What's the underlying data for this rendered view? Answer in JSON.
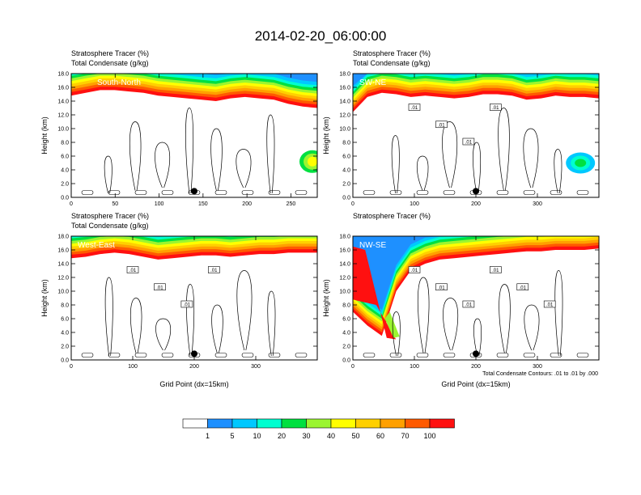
{
  "title": "2014-02-20_06:00:00",
  "chart_data": {
    "type": "heatmap",
    "panels": [
      {
        "name": "South-North",
        "field_label": "Stratosphere Tracer",
        "field_unit": "(%)",
        "contour_label": "Total Condensate",
        "contour_unit": "(g/kg)",
        "ylabel": "Height (km)",
        "xlabel": "",
        "xlim": [
          0,
          280
        ],
        "ylim": [
          0,
          18
        ],
        "xticks": [
          "0",
          "50",
          "100",
          "150",
          "200",
          "250"
        ],
        "yticks": [
          "0.0",
          "2.0",
          "4.0",
          "6.0",
          "8.0",
          "10.0",
          "12.0",
          "14.0",
          "16.0",
          "18.0"
        ],
        "point_x": 140,
        "contour_value_labels": [],
        "tropopause_km": [
          14.8,
          15.2,
          15.6,
          15.6,
          15.4,
          15.2,
          14.8,
          14.6,
          14.4,
          14.2,
          14.0,
          14.4,
          14.6,
          14.4,
          14.2,
          13.6,
          13.2,
          13.0
        ]
      },
      {
        "name": "SW-NE",
        "field_label": "Stratosphere Tracer",
        "field_unit": "(%)",
        "contour_label": "Total Condensate",
        "contour_unit": "(g/kg)",
        "ylabel": "Height (km)",
        "xlabel": "",
        "xlim": [
          0,
          400
        ],
        "ylim": [
          0,
          18
        ],
        "xticks": [
          "0",
          "100",
          "200",
          "300"
        ],
        "yticks": [
          "0.0",
          "2.0",
          "4.0",
          "6.0",
          "8.0",
          "10.0",
          "12.0",
          "14.0",
          "16.0",
          "18.0"
        ],
        "point_x": 200,
        "contour_value_labels": [
          ".01",
          ".01",
          ".01",
          ".01"
        ],
        "tropopause_km": [
          12.4,
          14.6,
          15.2,
          15.0,
          14.6,
          14.8,
          14.6,
          14.4,
          14.6,
          15.0,
          15.0,
          14.8,
          14.2,
          14.4,
          14.8,
          14.6,
          14.6,
          14.4
        ]
      },
      {
        "name": "West-East",
        "field_label": "Stratosphere Tracer",
        "field_unit": "(%)",
        "contour_label": "Total Condensate",
        "contour_unit": "(g/kg)",
        "ylabel": "Height (km)",
        "xlabel": "Grid Point (dx=15km)",
        "xlim": [
          0,
          400
        ],
        "ylim": [
          0,
          18
        ],
        "xticks": [
          "0",
          "100",
          "200",
          "300"
        ],
        "yticks": [
          "0.0",
          "2.0",
          "4.0",
          "6.0",
          "8.0",
          "10.0",
          "12.0",
          "14.0",
          "16.0",
          "18.0"
        ],
        "point_x": 200,
        "contour_value_labels": [
          ".01",
          ".01",
          ".01",
          ".01"
        ],
        "tropopause_km": [
          14.8,
          15.0,
          15.4,
          15.6,
          15.4,
          15.0,
          14.6,
          14.8,
          15.0,
          15.2,
          15.2,
          15.0,
          15.2,
          15.4,
          15.4,
          15.6,
          15.6,
          15.6
        ]
      },
      {
        "name": "NW-SE",
        "field_label": "Stratosphere Tracer",
        "field_unit": "(%)",
        "contour_label": "",
        "contour_unit": "",
        "ylabel": "Height (km)",
        "xlabel": "Grid Point (dx=15km)",
        "xlim": [
          0,
          400
        ],
        "ylim": [
          0,
          18
        ],
        "xticks": [
          "0",
          "100",
          "200",
          "300"
        ],
        "yticks": [
          "0.0",
          "2.0",
          "4.0",
          "6.0",
          "8.0",
          "10.0",
          "12.0",
          "14.0",
          "16.0",
          "18.0"
        ],
        "point_x": 200,
        "contour_value_labels": [
          ".01",
          ".01",
          ".01",
          ".01",
          ".01",
          ".01"
        ],
        "tropopause_km": [
          7.0,
          5.0,
          3.5,
          10.0,
          13.0,
          14.0,
          14.6,
          14.8,
          15.0,
          15.2,
          15.4,
          15.6,
          15.8,
          15.8,
          16.0,
          16.0,
          16.0,
          16.2
        ]
      }
    ],
    "contour_note": "Total Condensate Contours: .01 to .01 by .000",
    "colorbar": {
      "labels": [
        "1",
        "5",
        "10",
        "20",
        "30",
        "40",
        "50",
        "60",
        "70",
        "100"
      ],
      "colors": [
        "#ffffff",
        "#1e90ff",
        "#00c8ff",
        "#00ffd0",
        "#00e040",
        "#9bf530",
        "#ffff00",
        "#ffd000",
        "#ffa000",
        "#ff5a00",
        "#ff1010"
      ]
    }
  }
}
